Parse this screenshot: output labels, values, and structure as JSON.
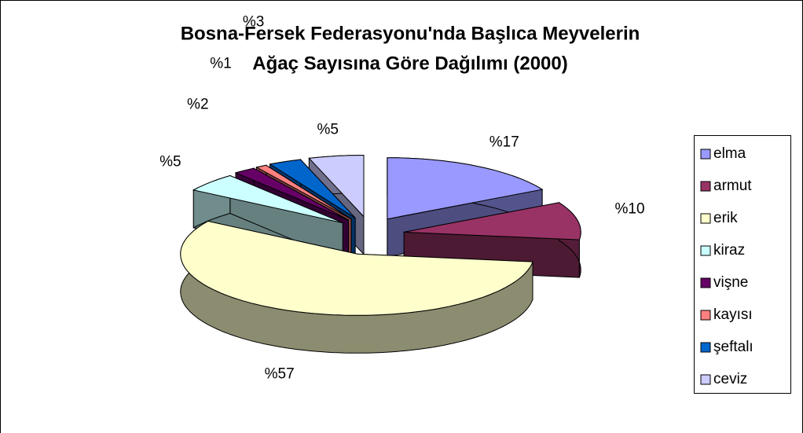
{
  "chart_data": {
    "type": "pie3d",
    "title": [
      "Bosna-Fersek Federasyonu'nda Başlıca Meyvelerin",
      "Ağaç Sayısına Göre Dağılımı (2000)"
    ],
    "categories": [
      "elma",
      "armut",
      "erik",
      "kiraz",
      "vişne",
      "kayısı",
      "şeftalı",
      "ceviz"
    ],
    "values": [
      17,
      10,
      57,
      5,
      2,
      1,
      3,
      5
    ],
    "value_labels": [
      "%17",
      "%10",
      "%57",
      "%5",
      "%2",
      "%1",
      "%3",
      "%5"
    ],
    "colors": [
      "#9999ff",
      "#993366",
      "#ffffcc",
      "#ccffff",
      "#660066",
      "#ff8080",
      "#0066cc",
      "#ccccff"
    ],
    "legend": "right"
  }
}
